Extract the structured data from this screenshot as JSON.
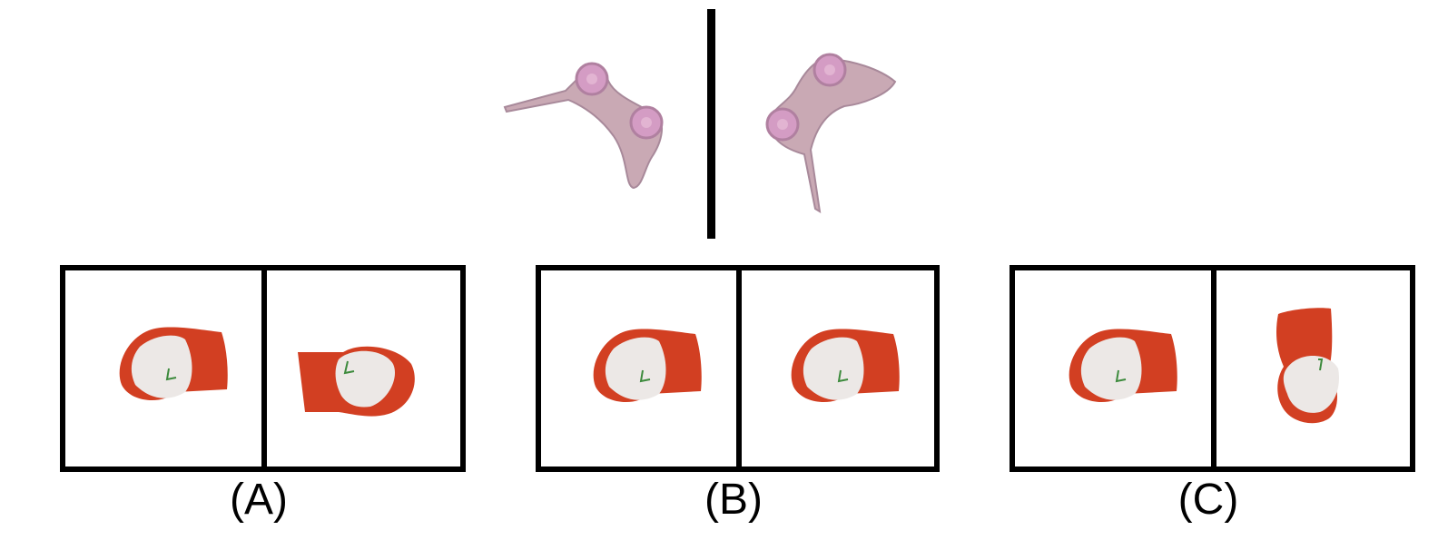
{
  "reference": {
    "object": "pink-clamp-bracket",
    "colors": {
      "body": "#c9a9b4",
      "knob": "#d49cc4",
      "outline": "#a8899a"
    }
  },
  "options": [
    {
      "label": "(A)"
    },
    {
      "label": "(B)"
    },
    {
      "label": "(C)"
    }
  ],
  "cap": {
    "colors": {
      "red": "#d23f22",
      "white": "#ece8e6",
      "logo": "#3c8a3c"
    }
  }
}
